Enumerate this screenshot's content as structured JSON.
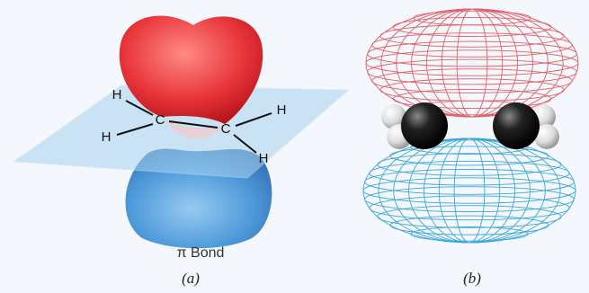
{
  "panel_a": {
    "atoms": [
      {
        "label": "H"
      },
      {
        "label": "C"
      },
      {
        "label": "H"
      },
      {
        "label": "C"
      },
      {
        "label": "H"
      },
      {
        "label": "H"
      }
    ],
    "caption": "π Bond",
    "label": "(a)"
  },
  "panel_b": {
    "label": "(b)"
  }
}
